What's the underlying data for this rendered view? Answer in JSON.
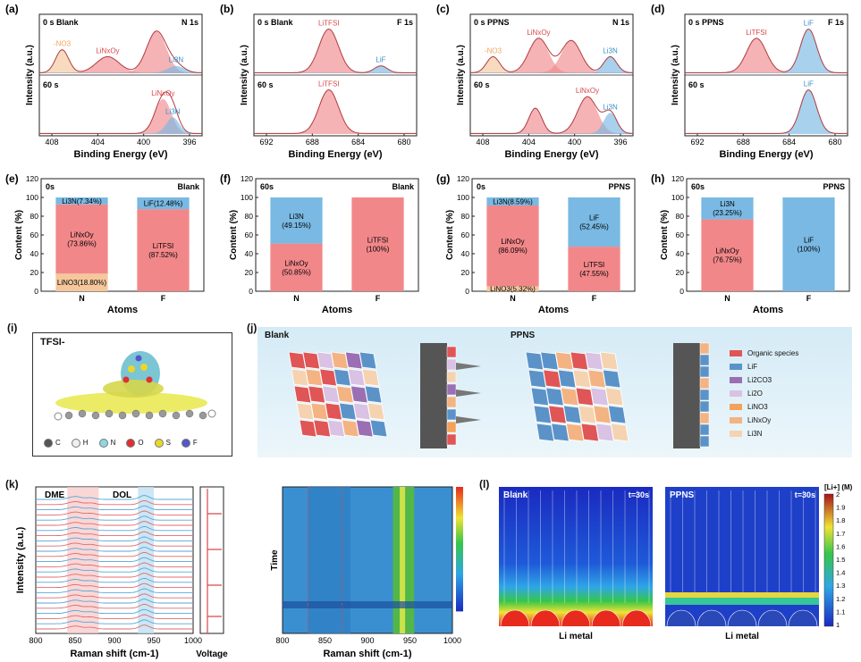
{
  "colors": {
    "red": "#d9474b",
    "red_fill": "#f08a8d",
    "blue": "#3a8fc8",
    "blue_fill": "#79b9e3",
    "orange": "#f2a25a",
    "tan": "#f4c79c",
    "purple": "#9b6fb3",
    "lilac": "#d6bfe0",
    "bg_j": "#d5ebf6"
  },
  "xps": [
    {
      "label": "(a)",
      "tl": "0 s  Blank",
      "tr": "N 1s",
      "bottom": "60 s",
      "xticks": [
        "408",
        "404",
        "400",
        "396"
      ],
      "xlabel": "Binding Energy (eV)",
      "ylabel": "Intensity (a.u.)",
      "peaks_top": [
        "-NO3",
        "LiNxOy",
        "Li3N"
      ],
      "peaks_bottom": [
        "LiNxOy",
        "Li3N"
      ]
    },
    {
      "label": "(b)",
      "tl": "0 s  Blank",
      "tr": "F 1s",
      "bottom": "60 s",
      "xticks": [
        "692",
        "688",
        "684",
        "680"
      ],
      "xlabel": "Binding Energy (eV)",
      "ylabel": "Intensity (a.u.)",
      "peaks_top": [
        "LiTFSI",
        "LiF"
      ],
      "peaks_bottom": [
        "LiTFSI"
      ]
    },
    {
      "label": "(c)",
      "tl": "0 s  PPNS",
      "tr": "N 1s",
      "bottom": "60 s",
      "xticks": [
        "408",
        "404",
        "400",
        "396"
      ],
      "xlabel": "Binding Energy (eV)",
      "ylabel": "Intensity (a.u.)",
      "peaks_top": [
        "-NO3",
        "LiNxOy",
        "Li3N"
      ],
      "peaks_bottom": [
        "LiNxOy",
        "Li3N"
      ]
    },
    {
      "label": "(d)",
      "tl": "0 s  PPNS",
      "tr": "F 1s",
      "bottom": "60 s",
      "xticks": [
        "692",
        "688",
        "684",
        "680"
      ],
      "xlabel": "Binding Energy (eV)",
      "ylabel": "Intensity (a.u.)",
      "peaks_top": [
        "LiTFSI",
        "LiF"
      ],
      "peaks_bottom": [
        "LiF"
      ]
    }
  ],
  "bars": [
    {
      "label": "(e)",
      "tl": "0s",
      "tr": "Blank",
      "N": [
        {
          "name": "LiNO3(18.80%)",
          "v": 18.8,
          "c": "tan"
        },
        {
          "name": "LiNxOy (73.86%)",
          "v": 73.86,
          "c": "red"
        },
        {
          "name": "Li3N(7.34%)",
          "v": 7.34,
          "c": "blue"
        }
      ],
      "F": [
        {
          "name": "LiTFSI (87.52%)",
          "v": 87.52,
          "c": "red"
        },
        {
          "name": "LiF(12.48%)",
          "v": 12.48,
          "c": "blue"
        }
      ]
    },
    {
      "label": "(f)",
      "tl": "60s",
      "tr": "Blank",
      "N": [
        {
          "name": "LiNxOy (50.85%)",
          "v": 50.85,
          "c": "red"
        },
        {
          "name": "Li3N (49.15%)",
          "v": 49.15,
          "c": "blue"
        }
      ],
      "F": [
        {
          "name": "LiTFSI (100%)",
          "v": 100,
          "c": "red"
        }
      ]
    },
    {
      "label": "(g)",
      "tl": "0s",
      "tr": "PPNS",
      "N": [
        {
          "name": "LiNO3(5.32%)",
          "v": 5.32,
          "c": "tan"
        },
        {
          "name": "LiNxOy (86.09%)",
          "v": 86.09,
          "c": "red"
        },
        {
          "name": "Li3N(8.59%)",
          "v": 8.59,
          "c": "blue"
        }
      ],
      "F": [
        {
          "name": "LiTFSI (47.55%)",
          "v": 47.55,
          "c": "red"
        },
        {
          "name": "LiF (52.45%)",
          "v": 52.45,
          "c": "blue"
        }
      ]
    },
    {
      "label": "(h)",
      "tl": "60s",
      "tr": "PPNS",
      "N": [
        {
          "name": "LiNxOy (76.75%)",
          "v": 76.75,
          "c": "red"
        },
        {
          "name": "Li3N (23.25%)",
          "v": 23.25,
          "c": "blue"
        }
      ],
      "F": [
        {
          "name": "LiF (100%)",
          "v": 100,
          "c": "blue"
        }
      ]
    }
  ],
  "bar_axes": {
    "ylabel": "Content (%)",
    "xlabel": "Atoms",
    "yticks": [
      "0",
      "20",
      "40",
      "60",
      "80",
      "100",
      "120"
    ],
    "cats": [
      "N",
      "F"
    ]
  },
  "panel_i": {
    "label": "(i)",
    "title": "TFSI-",
    "legend": [
      "C",
      "H",
      "N",
      "O",
      "S",
      "F"
    ]
  },
  "panel_j": {
    "label": "(j)",
    "left": "Blank",
    "right": "PPNS",
    "legend": [
      "Organic species",
      "LiF",
      "Li2CO3",
      "Li2O",
      "LiNO3",
      "LiNxOy",
      "Li3N"
    ]
  },
  "panel_k": {
    "label": "(k)",
    "dme": "DME",
    "dol": "DOL",
    "ylabel": "Intensity (a.u.)",
    "xlabel": "Raman shift (cm-1)",
    "xticks": [
      "800",
      "850",
      "900",
      "950",
      "1000"
    ],
    "voltage": "Voltage",
    "time": "Time"
  },
  "panel_l": {
    "label": "(l)",
    "left": "Blank",
    "right": "PPNS",
    "t": "t=30s",
    "metal": "Li metal",
    "cbar_title": "[Li+] (M)",
    "cbar_ticks": [
      "2",
      "1.9",
      "1.8",
      "1.7",
      "1.6",
      "1.5",
      "1.4",
      "1.3",
      "1.2",
      "1.1",
      "1"
    ]
  }
}
